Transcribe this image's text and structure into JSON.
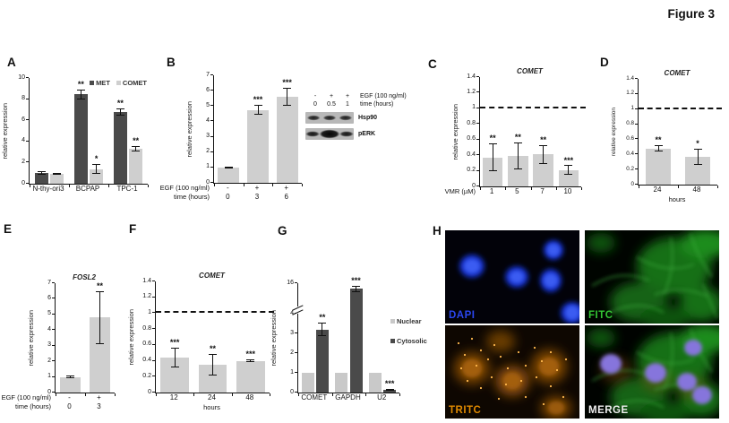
{
  "figure_title": "Figure 3",
  "panel_letters": {
    "A": "A",
    "B": "B",
    "C": "C",
    "D": "D",
    "E": "E",
    "F": "F",
    "G": "G",
    "H": "H"
  },
  "colors": {
    "dark_bar": "#4a4a4a",
    "light_bar": "#cfcfcf",
    "dapi": "#2a46ee",
    "fitc": "#34c534",
    "tritc": "#e08a00",
    "merge": "#efefef"
  },
  "blot": {
    "rows": [
      {
        "header": "EGF (100 ng/ml)",
        "values": [
          "-",
          "+",
          "+"
        ]
      },
      {
        "header": "time (hours)",
        "values": [
          "0",
          "0.5",
          "1"
        ]
      }
    ],
    "bands": [
      "Hsp90",
      "pERK"
    ]
  },
  "micrographs": [
    {
      "label": "DAPI"
    },
    {
      "label": "FITC"
    },
    {
      "label": "TRITC"
    },
    {
      "label": "MERGE"
    }
  ],
  "chart_data": [
    {
      "id": "A",
      "type": "bar",
      "grouped": true,
      "categories": [
        "N-thy-ori3",
        "BCPAP",
        "TPC-1"
      ],
      "series": [
        {
          "name": "MET",
          "color": "#4a4a4a",
          "values": [
            1.0,
            8.45,
            6.8
          ],
          "errors": [
            0.18,
            0.45,
            0.35
          ],
          "sig": [
            "",
            "**",
            "**"
          ]
        },
        {
          "name": "COMET",
          "color": "#cfcfcf",
          "values": [
            0.95,
            1.4,
            3.3
          ],
          "errors": [
            0.1,
            0.5,
            0.25
          ],
          "sig": [
            "",
            "*",
            "**"
          ]
        }
      ],
      "ylabel": "relative expression",
      "ymax": 10,
      "ticks": [
        0,
        2,
        4,
        6,
        8,
        10
      ],
      "legend": {
        "pos": "top"
      },
      "bar_frac": 0.74
    },
    {
      "id": "B",
      "type": "bar",
      "values": [
        1.0,
        4.75,
        5.6
      ],
      "errors": [
        0.06,
        0.3,
        0.6
      ],
      "sig": [
        "",
        "***",
        "***"
      ],
      "color": "#cfcfcf",
      "ylabel": "relative expression",
      "ymax": 7,
      "ticks": [
        0,
        1,
        2,
        3,
        4,
        5,
        6,
        7
      ],
      "xrows": [
        {
          "header": "EGF (100 ng/ml)",
          "values": [
            "-",
            "+",
            "+"
          ]
        },
        {
          "header": "time (hours)",
          "values": [
            "0",
            "3",
            "6"
          ]
        }
      ],
      "bar_frac": 0.74
    },
    {
      "id": "C",
      "type": "bar",
      "title": "COMET",
      "values": [
        0.37,
        0.39,
        0.41,
        0.21
      ],
      "errors": [
        0.18,
        0.17,
        0.12,
        0.06
      ],
      "sig": [
        "**",
        "**",
        "**",
        "***"
      ],
      "color": "#cfcfcf",
      "ylabel": "relative expression",
      "ymax": 1.4,
      "ticks": [
        0,
        0.2,
        0.4,
        0.6,
        0.8,
        1,
        1.2,
        1.4
      ],
      "refline": 1,
      "xrows": [
        {
          "header": "VMR (µM)",
          "values": [
            "1",
            "5",
            "7",
            "10"
          ]
        }
      ],
      "bar_frac": 0.8
    },
    {
      "id": "D",
      "type": "bar",
      "title": "COMET",
      "small": true,
      "values": [
        0.48,
        0.37
      ],
      "errors": [
        0.04,
        0.11
      ],
      "sig": [
        "**",
        "*"
      ],
      "color": "#cfcfcf",
      "ylabel": "relative expression",
      "ymax": 1.4,
      "ticks": [
        0,
        0.2,
        0.4,
        0.6,
        0.8,
        1,
        1.2,
        1.4
      ],
      "refline": 1,
      "categories": [
        "24",
        "48"
      ],
      "xlabel": "hours",
      "bar_frac": 0.62
    },
    {
      "id": "E",
      "type": "bar",
      "title": "FOSL2",
      "values": [
        1.0,
        4.8
      ],
      "errors": [
        0.08,
        1.7
      ],
      "sig": [
        "",
        "**"
      ],
      "color": "#cfcfcf",
      "ylabel": "relative expression",
      "ymax": 7,
      "ticks": [
        0,
        1,
        2,
        3,
        4,
        5,
        6,
        7
      ],
      "xrows": [
        {
          "header": "EGF (100 ng/ml)",
          "values": [
            "-",
            "+"
          ]
        },
        {
          "header": "time (hours)",
          "values": [
            "0",
            "3"
          ]
        }
      ],
      "bar_frac": 0.72
    },
    {
      "id": "F",
      "type": "bar",
      "title": "COMET",
      "values": [
        0.44,
        0.35,
        0.4
      ],
      "errors": [
        0.12,
        0.14,
        0.02
      ],
      "sig": [
        "***",
        "**",
        "***"
      ],
      "color": "#cfcfcf",
      "ylabel": "relative expression",
      "ymax": 1.4,
      "ticks": [
        0,
        0.2,
        0.4,
        0.6,
        0.8,
        1,
        1.2,
        1.4
      ],
      "refline": 1,
      "categories": [
        "12",
        "24",
        "48"
      ],
      "xlabel": "hours",
      "bar_frac": 0.75
    },
    {
      "id": "G",
      "type": "bar",
      "grouped": true,
      "categories": [
        "COMET",
        "GAPDH",
        "U2"
      ],
      "series": [
        {
          "name": "Nuclear",
          "color": "#c9c9c9",
          "values": [
            1,
            1,
            1
          ],
          "errors": [
            0,
            0,
            0
          ],
          "sig": [
            "",
            "",
            ""
          ]
        },
        {
          "name": "Cytosolic",
          "color": "#4a4a4a",
          "values": [
            3.2,
            15.5,
            0.15
          ],
          "errors": [
            0.35,
            0.25,
            0.05
          ],
          "sig": [
            "**",
            "***",
            "***"
          ]
        }
      ],
      "ylabel": "relative expression",
      "ticks": [
        0,
        1,
        2,
        3,
        4,
        16
      ],
      "axis_break": {
        "lower_max": 4,
        "upper_min": 14,
        "upper_max": 16,
        "lower_frac": 0.72,
        "gap_frac": 0.07
      },
      "legend": {
        "pos": "right"
      },
      "bar_frac": 0.8
    }
  ]
}
